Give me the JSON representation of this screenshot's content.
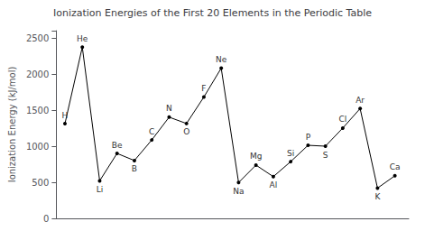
{
  "chart_data": {
    "type": "line",
    "title": "Ionization Energies of the First 20 Elements in the Periodic Table",
    "ylabel": "Ionization Energy (kJ/mol)",
    "x": [
      1,
      2,
      3,
      4,
      5,
      6,
      7,
      8,
      9,
      10,
      11,
      12,
      13,
      14,
      15,
      16,
      17,
      18,
      19,
      20
    ],
    "values": [
      1312,
      2372,
      520,
      900,
      801,
      1086,
      1402,
      1314,
      1681,
      2081,
      496,
      738,
      578,
      786,
      1012,
      1000,
      1251,
      1521,
      419,
      590
    ],
    "annotations": [
      "H",
      "He",
      "Li",
      "Be",
      "B",
      "C",
      "N",
      "O",
      "F",
      "Ne",
      "Na",
      "Mg",
      "Al",
      "Si",
      "P",
      "S",
      "Cl",
      "Ar",
      "K",
      "Ca"
    ],
    "color": "#000000",
    "marker": "circle",
    "xlim": [
      0.5,
      20.8
    ],
    "ylim": [
      0,
      2600
    ],
    "yticks": [
      0,
      500,
      1000,
      1500,
      2000,
      2500
    ],
    "tick_labels": "y",
    "grid": false
  }
}
